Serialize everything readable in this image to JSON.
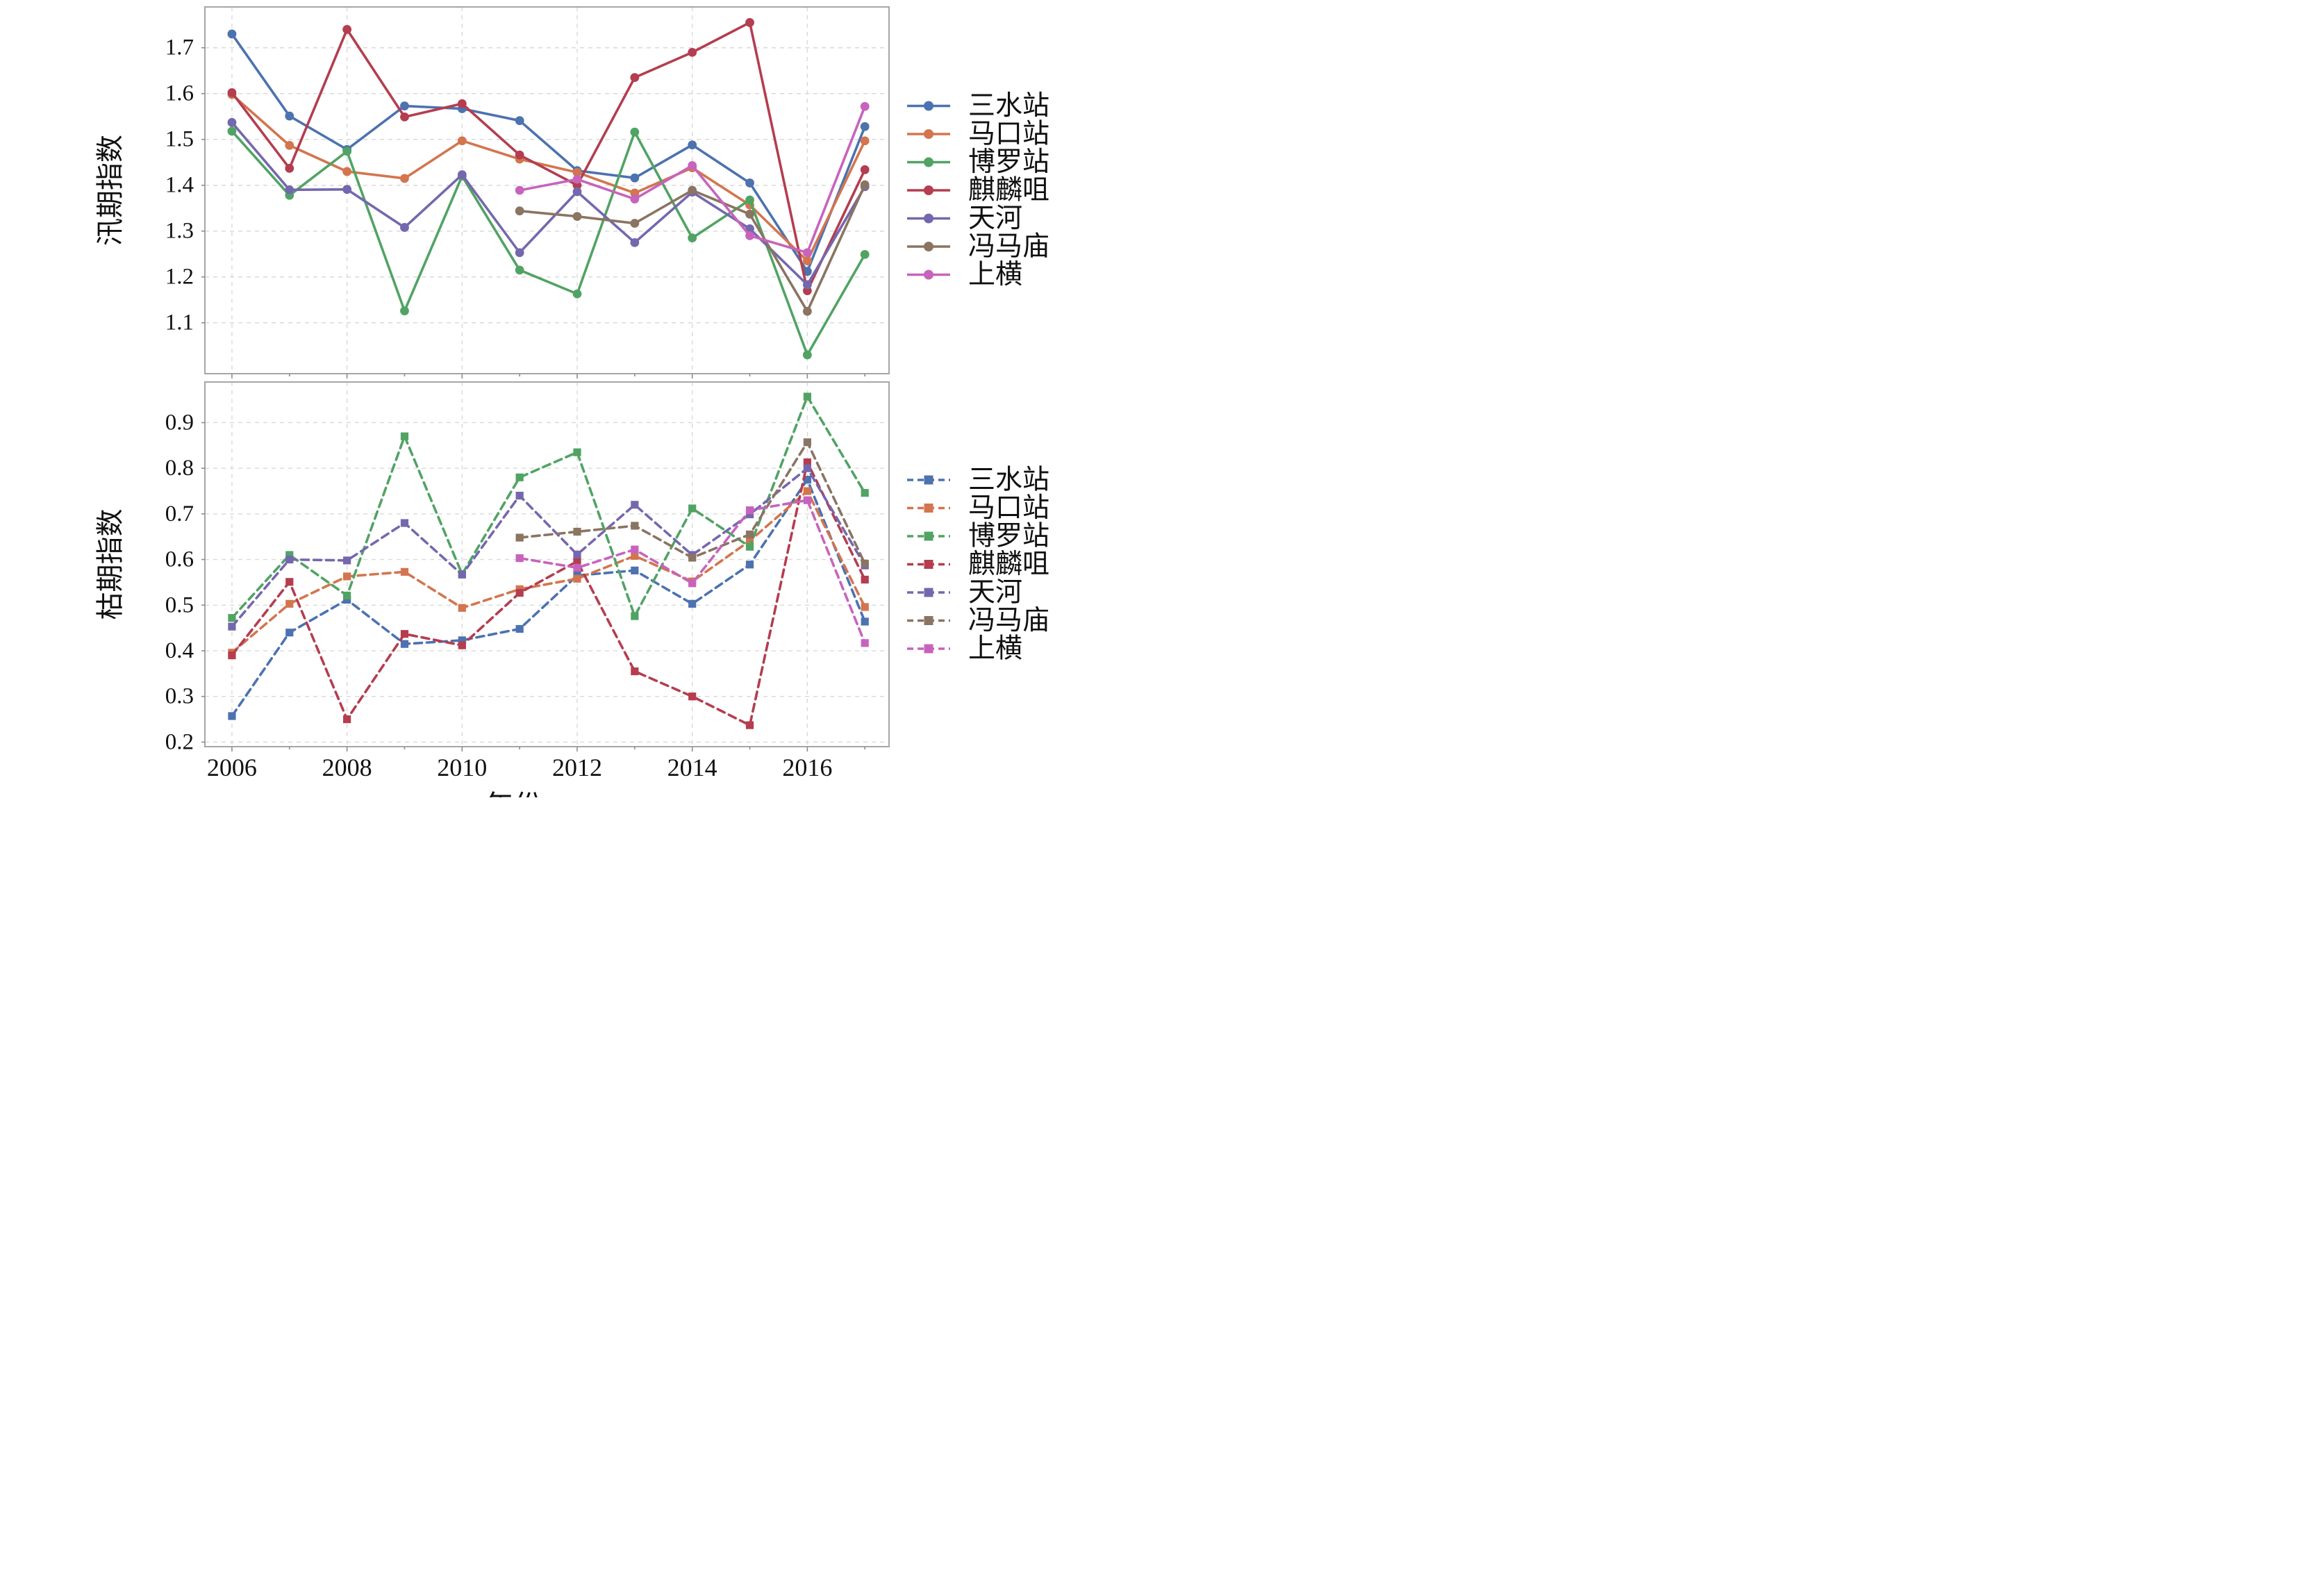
{
  "figure": {
    "background": "#ffffff",
    "spine_color": "#a6a6a6",
    "grid_color": "#d9d9d9",
    "tick_color": "#8c8c8c",
    "text_color": "#111111",
    "x_axis_title": "年份"
  },
  "legend_series": [
    "三水站",
    "马口站",
    "博罗站",
    "麒麟咀",
    "天河",
    "冯马庙",
    "上横"
  ],
  "colors": [
    "#4c72b0",
    "#d3754e",
    "#51a364",
    "#b43d4f",
    "#7567ae",
    "#8a7462",
    "#c763bd"
  ],
  "chart_data": [
    {
      "type": "line",
      "title": "",
      "ylabel": "汛期指数",
      "xlabel": "",
      "style": "solid",
      "marker": "circle",
      "grid": true,
      "legend_position": "right",
      "x": [
        2006,
        2007,
        2008,
        2009,
        2010,
        2011,
        2012,
        2013,
        2014,
        2015,
        2016,
        2017
      ],
      "xticks": [
        2006,
        2008,
        2010,
        2012,
        2014,
        2016
      ],
      "x_tick_labels_visible": false,
      "xlim": [
        2005.53,
        2017.42
      ],
      "ylim": [
        0.989,
        1.789
      ],
      "yticks": [
        1.1,
        1.2,
        1.3,
        1.4,
        1.5,
        1.6,
        1.7
      ],
      "series": [
        {
          "name": "三水站",
          "values": [
            1.73,
            1.551,
            1.478,
            1.573,
            1.567,
            1.541,
            1.432,
            1.416,
            1.488,
            1.405,
            1.212,
            1.528
          ]
        },
        {
          "name": "马口站",
          "values": [
            1.598,
            1.487,
            1.43,
            1.415,
            1.497,
            1.457,
            1.428,
            1.383,
            1.438,
            1.357,
            1.235,
            1.497
          ]
        },
        {
          "name": "博罗站",
          "values": [
            1.518,
            1.378,
            1.474,
            1.126,
            1.42,
            1.215,
            1.163,
            1.516,
            1.285,
            1.368,
            1.03,
            1.249
          ]
        },
        {
          "name": "麒麟咀",
          "values": [
            1.602,
            1.437,
            1.74,
            1.549,
            1.578,
            1.466,
            1.4,
            1.635,
            1.69,
            1.755,
            1.17,
            1.434
          ]
        },
        {
          "name": "天河",
          "values": [
            1.537,
            1.39,
            1.391,
            1.308,
            1.423,
            1.253,
            1.386,
            1.275,
            1.385,
            1.305,
            1.183,
            1.397
          ]
        },
        {
          "name": "冯马庙",
          "values": [
            null,
            null,
            null,
            null,
            null,
            1.344,
            1.332,
            1.317,
            1.389,
            1.337,
            1.125,
            1.401
          ]
        },
        {
          "name": "上横",
          "values": [
            null,
            null,
            null,
            null,
            null,
            1.389,
            1.413,
            1.37,
            1.443,
            1.29,
            1.253,
            1.572
          ]
        }
      ]
    },
    {
      "type": "line",
      "title": "",
      "ylabel": "枯期指数",
      "xlabel": "年份",
      "style": "dashed",
      "marker": "square",
      "grid": true,
      "legend_position": "right",
      "x": [
        2006,
        2007,
        2008,
        2009,
        2010,
        2011,
        2012,
        2013,
        2014,
        2015,
        2016,
        2017
      ],
      "xticks": [
        2006,
        2008,
        2010,
        2012,
        2014,
        2016
      ],
      "x_tick_labels_visible": true,
      "xlim": [
        2005.53,
        2017.42
      ],
      "ylim": [
        0.19,
        0.989
      ],
      "yticks": [
        0.2,
        0.3,
        0.4,
        0.5,
        0.6,
        0.7,
        0.8,
        0.9
      ],
      "series": [
        {
          "name": "三水站",
          "values": [
            0.257,
            0.44,
            0.512,
            0.415,
            0.423,
            0.448,
            0.565,
            0.576,
            0.503,
            0.589,
            0.775,
            0.464
          ]
        },
        {
          "name": "马口站",
          "values": [
            0.396,
            0.503,
            0.563,
            0.573,
            0.494,
            0.535,
            0.558,
            0.608,
            0.552,
            0.641,
            0.75,
            0.496
          ]
        },
        {
          "name": "博罗站",
          "values": [
            0.472,
            0.61,
            0.521,
            0.87,
            0.568,
            0.78,
            0.835,
            0.476,
            0.712,
            0.628,
            0.957,
            0.746
          ]
        },
        {
          "name": "麒麟咀",
          "values": [
            0.39,
            0.551,
            0.25,
            0.437,
            0.412,
            0.527,
            0.596,
            0.355,
            0.3,
            0.237,
            0.813,
            0.556
          ]
        },
        {
          "name": "天河",
          "values": [
            0.453,
            0.6,
            0.598,
            0.68,
            0.567,
            0.74,
            0.611,
            0.72,
            0.61,
            0.699,
            0.8,
            0.587
          ]
        },
        {
          "name": "冯马庙",
          "values": [
            null,
            null,
            null,
            null,
            null,
            0.648,
            0.661,
            0.674,
            0.604,
            0.655,
            0.857,
            0.591
          ]
        },
        {
          "name": "上横",
          "values": [
            null,
            null,
            null,
            null,
            null,
            0.603,
            0.582,
            0.622,
            0.548,
            0.708,
            0.73,
            0.417
          ]
        }
      ]
    }
  ]
}
